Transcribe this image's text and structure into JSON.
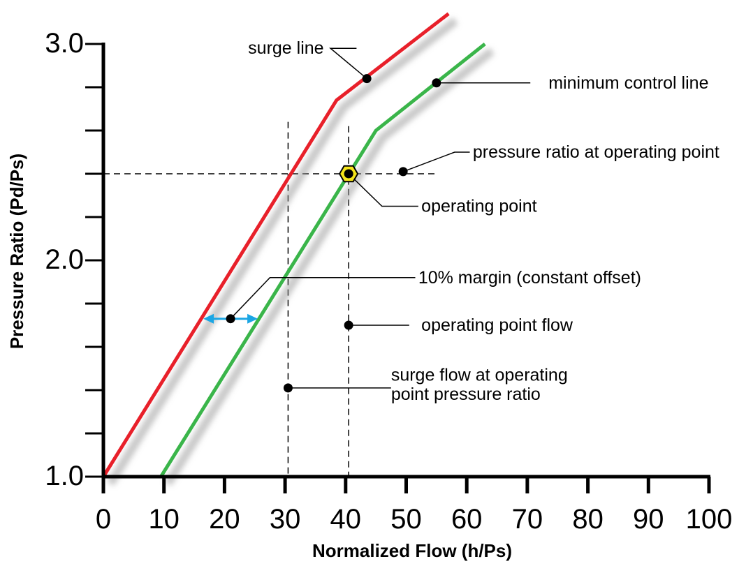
{
  "chart_data": {
    "type": "line",
    "title": "",
    "xlabel": "Normalized Flow (h/Ps)",
    "ylabel": "Pressure Ratio (Pd/Ps)",
    "xlim": [
      0,
      100
    ],
    "ylim": [
      1.0,
      3.0
    ],
    "x_ticks": [
      "0",
      "10",
      "20",
      "30",
      "40",
      "50",
      "60",
      "70",
      "80",
      "90",
      "100"
    ],
    "y_ticks": [
      "1.0",
      "2.0",
      "3.0"
    ],
    "y_minor_ticks": [
      1.2,
      1.4,
      1.6,
      1.8,
      2.2,
      2.4,
      2.6,
      2.8
    ],
    "grid": false,
    "colors": {
      "surge": "#e8202a",
      "control": "#3ab54a",
      "margin_arrow": "#1ba6e4",
      "operating_point": "#f5e51b"
    },
    "series": [
      {
        "key": "surge",
        "x": [
          0,
          38.5,
          57
        ],
        "y": [
          1.0,
          2.74,
          3.14
        ]
      },
      {
        "key": "control",
        "x": [
          9.5,
          45,
          63
        ],
        "y": [
          1.0,
          2.6,
          3.0
        ]
      }
    ],
    "reference_lines": {
      "operating_pressure_ratio": 2.4,
      "operating_flow": 40.5,
      "surge_flow": 30.5
    },
    "operating_point": {
      "x": 40.5,
      "y": 2.4
    },
    "margin": {
      "x1": 16.5,
      "x2": 25.5,
      "y": 1.73
    },
    "annotations": [
      {
        "text": "surge line",
        "dot": [
          43.5,
          2.84
        ],
        "path": [
          [
            37.5,
            2.98
          ],
          [
            41.8,
            2.98
          ]
        ],
        "text_at": [
          36.4,
          2.98
        ]
      },
      {
        "text": "minimum control line",
        "dot": [
          55,
          2.82
        ],
        "path": [
          [
            70.5,
            2.82
          ]
        ],
        "text_at": [
          73.5,
          2.82
        ]
      },
      {
        "text": "pressure ratio at operating point",
        "dot": [
          49.5,
          2.41
        ],
        "path": [
          [
            58,
            2.5
          ],
          [
            60.5,
            2.5
          ]
        ],
        "text_at": [
          61,
          2.5
        ]
      },
      {
        "text": "operating point",
        "dot": [
          40.5,
          2.4
        ],
        "path": [
          [
            46,
            2.25
          ],
          [
            52,
            2.25
          ]
        ],
        "text_at": [
          52.5,
          2.25
        ]
      },
      {
        "text": "10% margin (constant offset)",
        "dot": [
          21,
          1.73
        ],
        "path": [
          [
            27.5,
            1.92
          ],
          [
            51.5,
            1.92
          ]
        ],
        "text_at": [
          52,
          1.92
        ]
      },
      {
        "text": "operating point flow",
        "dot": [
          40.5,
          1.7
        ],
        "path": [
          [
            50.5,
            1.7
          ]
        ],
        "text_at": [
          52.5,
          1.7
        ]
      },
      {
        "text": "surge flow at operating",
        "dot": [
          30.5,
          1.41
        ],
        "path": [
          [
            47.5,
            1.41
          ]
        ],
        "text_at": [
          47.5,
          1.47
        ]
      },
      {
        "text": "point pressure ratio",
        "dot": null,
        "path": [],
        "text_at": [
          47.5,
          1.38
        ]
      }
    ]
  }
}
